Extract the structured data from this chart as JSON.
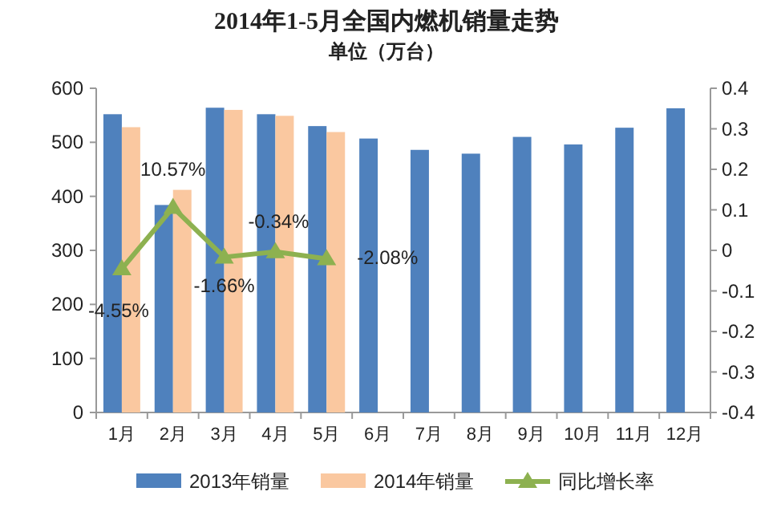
{
  "chart_data": {
    "type": "bar",
    "title": "2014年1-5月全国内燃机销量走势",
    "subtitle": "单位（万台）",
    "categories": [
      "1月",
      "2月",
      "3月",
      "4月",
      "5月",
      "6月",
      "7月",
      "8月",
      "9月",
      "10月",
      "11月",
      "12月"
    ],
    "series": [
      {
        "name": "2013年销量",
        "color": "#4f81bd",
        "values": [
          552,
          384,
          564,
          552,
          530,
          507,
          486,
          479,
          510,
          496,
          527,
          563
        ]
      },
      {
        "name": "2014年销量",
        "color": "#fac8a0",
        "values": [
          528,
          412,
          560,
          549,
          519,
          null,
          null,
          null,
          null,
          null,
          null,
          null
        ]
      },
      {
        "name": "同比增长率",
        "type": "line",
        "axis": "y2",
        "color": "#8db150",
        "marker": "triangle",
        "values": [
          -0.0455,
          0.1057,
          -0.0166,
          -0.0034,
          -0.0208,
          null,
          null,
          null,
          null,
          null,
          null,
          null
        ],
        "value_labels": [
          "-4.55%",
          "10.57%",
          "-1.66%",
          "-0.34%",
          "-2.08%",
          null,
          null,
          null,
          null,
          null,
          null,
          null
        ]
      }
    ],
    "ylim": [
      0,
      600
    ],
    "yticks": [
      0,
      100,
      200,
      300,
      400,
      500,
      600
    ],
    "y2lim": [
      -0.4,
      0.4
    ],
    "y2ticks": [
      -0.4,
      -0.3,
      -0.2,
      -0.1,
      0,
      0.1,
      0.2,
      0.3,
      0.4
    ],
    "legend": "bottom",
    "grid": false
  }
}
